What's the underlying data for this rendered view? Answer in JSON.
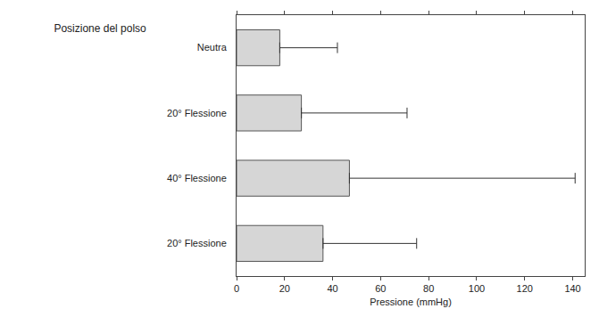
{
  "chart_data": {
    "type": "bar",
    "orientation": "horizontal",
    "title": "Posizione del polso",
    "x_label": "Pressione (mmHg)",
    "categories": [
      "Neutra",
      "20° Flessione",
      "40° Flessione",
      "20° Flessione"
    ],
    "values": [
      18,
      27,
      47,
      36
    ],
    "errors": [
      24,
      44,
      94,
      39
    ],
    "color": "#d6d6d6",
    "xlim": [
      0,
      145
    ],
    "xticks": [
      0,
      20,
      40,
      60,
      80,
      100,
      120,
      140
    ],
    "grid": false
  }
}
